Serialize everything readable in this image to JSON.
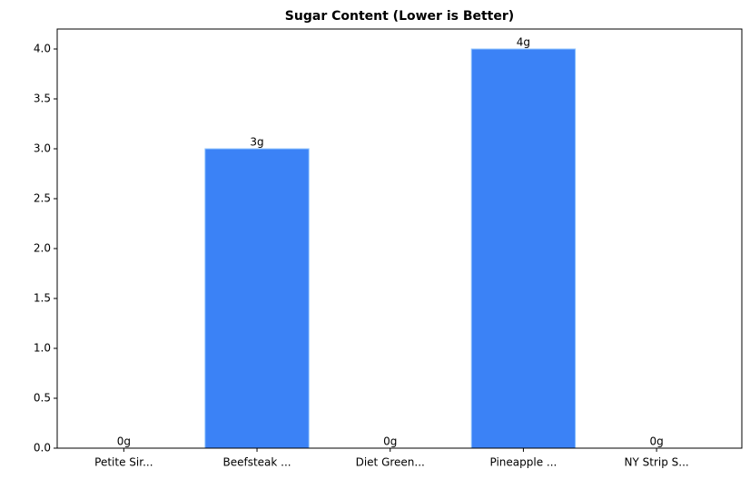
{
  "chart_data": {
    "type": "bar",
    "title": "Sugar Content (Lower is Better)",
    "categories": [
      "Petite Sir...",
      "Beefsteak ...",
      "Diet Green...",
      "Pineapple ...",
      "NY Strip S..."
    ],
    "values": [
      0,
      3,
      0,
      4,
      0
    ],
    "value_labels": [
      "0g",
      "3g",
      "0g",
      "4g",
      "0g"
    ],
    "color": "#3b82f6",
    "ylim": [
      0,
      4.2
    ],
    "yticks": [
      {
        "value": 0,
        "label": "0.0"
      },
      {
        "value": 0.5,
        "label": "0.5"
      },
      {
        "value": 1,
        "label": "1.0"
      },
      {
        "value": 1.5,
        "label": "1.5"
      },
      {
        "value": 2,
        "label": "2.0"
      },
      {
        "value": 2.5,
        "label": "2.5"
      },
      {
        "value": 3,
        "label": "3.0"
      },
      {
        "value": 3.5,
        "label": "3.5"
      },
      {
        "value": 4,
        "label": "4.0"
      }
    ]
  }
}
